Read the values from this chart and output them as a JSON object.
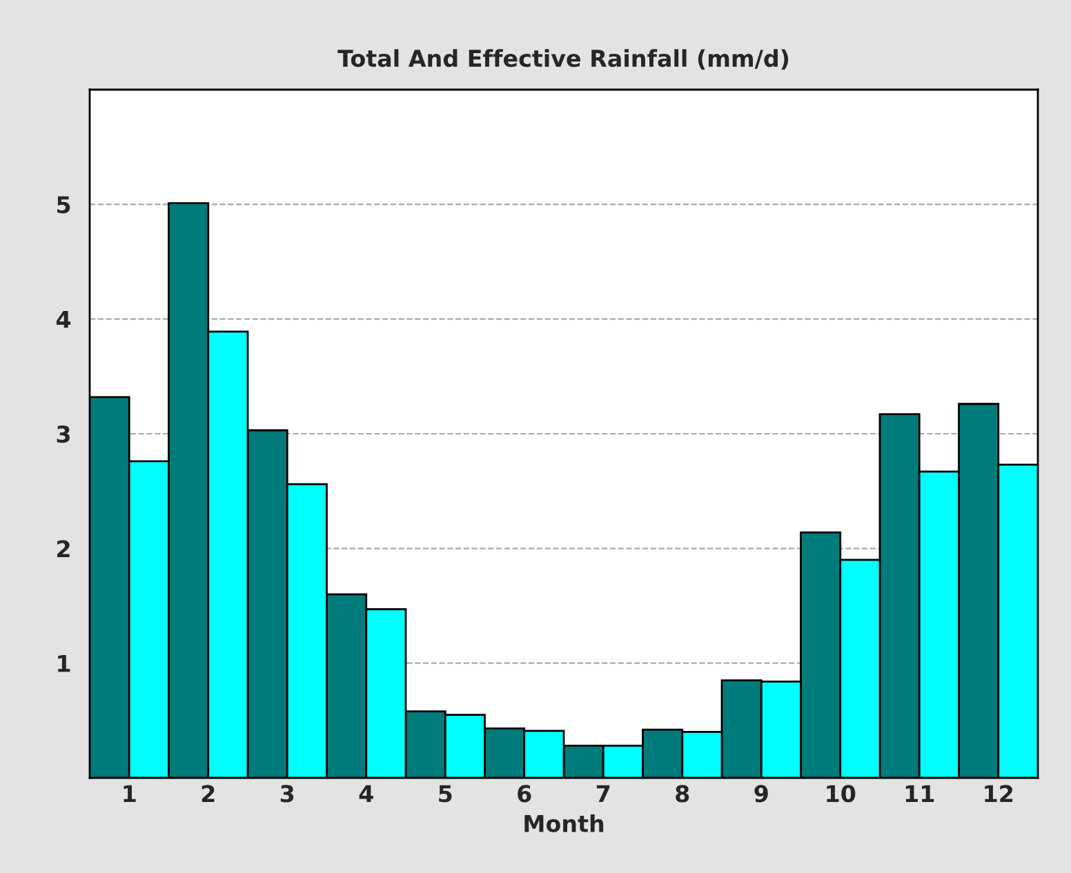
{
  "chart_data": {
    "type": "bar",
    "title": "Total And Effective Rainfall (mm/d)",
    "xlabel": "Month",
    "categories": [
      "1",
      "2",
      "3",
      "4",
      "5",
      "6",
      "7",
      "8",
      "9",
      "10",
      "11",
      "12"
    ],
    "series": [
      {
        "color": "#007b7b",
        "values": [
          3.32,
          5.01,
          3.03,
          1.6,
          0.58,
          0.43,
          0.28,
          0.42,
          0.85,
          2.14,
          3.17,
          3.26
        ]
      },
      {
        "color": "#00ffff",
        "values": [
          2.76,
          3.89,
          2.56,
          1.47,
          0.55,
          0.41,
          0.28,
          0.4,
          0.84,
          1.9,
          2.67,
          2.73
        ]
      }
    ],
    "ylim": [
      0,
      6
    ],
    "yticks": [
      1,
      2,
      3,
      4,
      5,
      {
        "value": 6,
        "label": null
      }
    ],
    "grid": "y",
    "legend": false
  }
}
